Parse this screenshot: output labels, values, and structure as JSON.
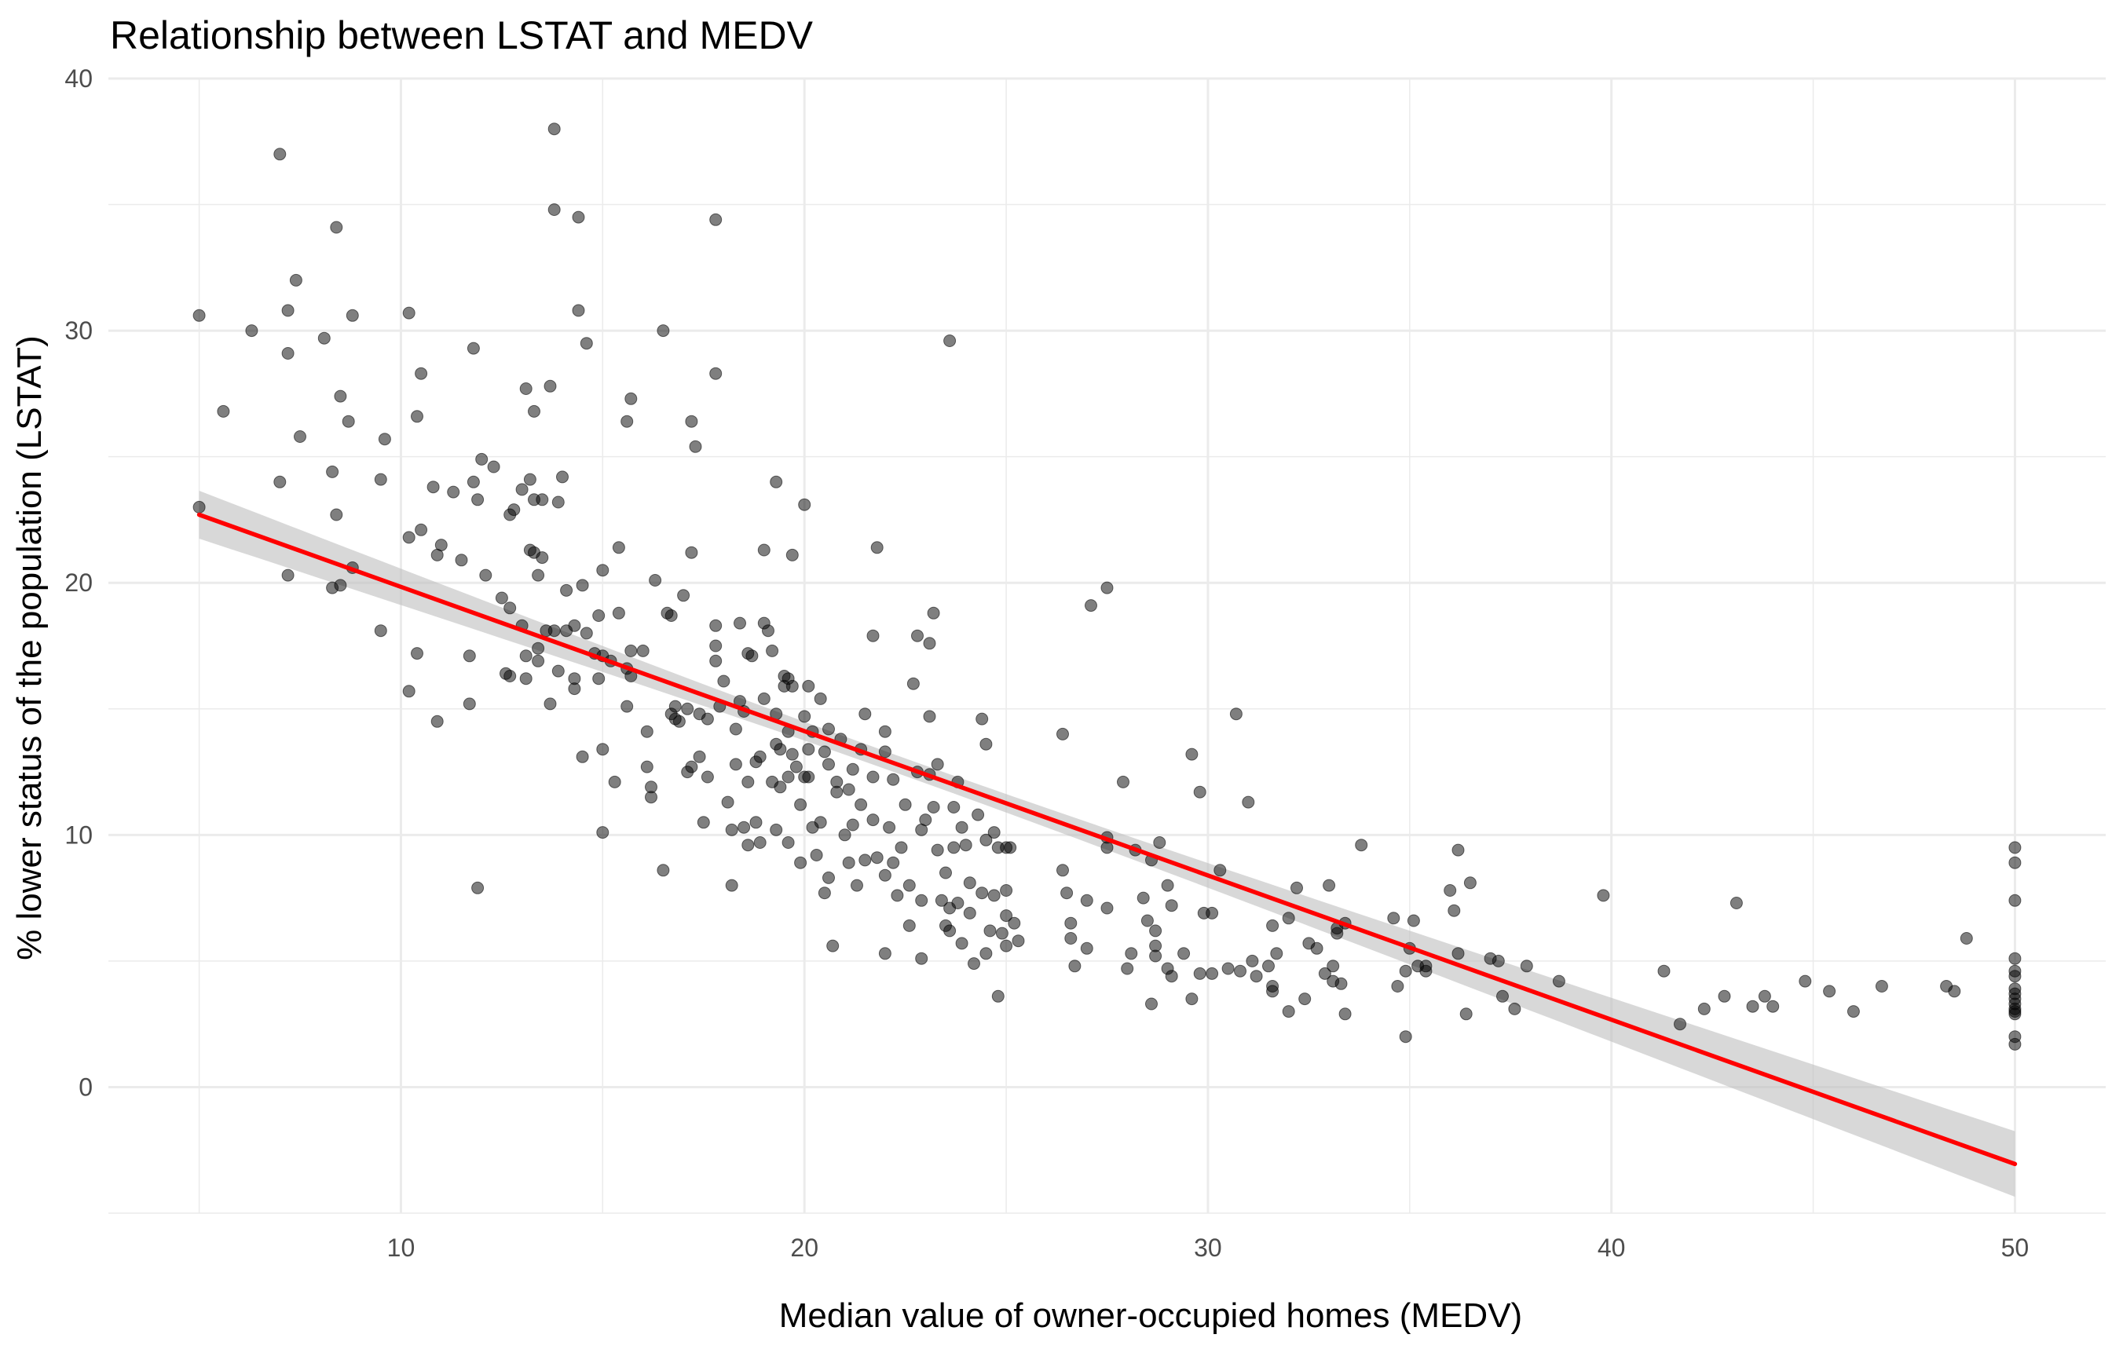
{
  "chart_data": {
    "type": "scatter",
    "title": "Relationship between LSTAT and MEDV",
    "xlabel": "Median value of owner-occupied homes (MEDV)",
    "ylabel": "% lower status of the population (LSTAT)",
    "xlim": [
      2.75,
      52.25
    ],
    "ylim": [
      -5,
      40
    ],
    "x_ticks": [
      10,
      20,
      30,
      40,
      50
    ],
    "y_ticks": [
      0,
      10,
      20,
      30,
      40
    ],
    "grid": true,
    "colors": {
      "points": "#000000",
      "fit_line": "#ff0000",
      "ribbon": "#bebebe",
      "grid": "#ebebeb"
    },
    "fit": {
      "x0": 5,
      "y0": 22.7,
      "x1": 50,
      "y1": -3.05,
      "se_ends": [
        0.95,
        1.3
      ],
      "se_center": 0.35,
      "x_center": 22.5
    },
    "points": [
      [
        5,
        30.6
      ],
      [
        5,
        23
      ],
      [
        5.6,
        26.8
      ],
      [
        6.3,
        30
      ],
      [
        7,
        37
      ],
      [
        7,
        24
      ],
      [
        7.2,
        29.1
      ],
      [
        7.2,
        30.8
      ],
      [
        7.2,
        20.3
      ],
      [
        7.4,
        32
      ],
      [
        7.5,
        25.8
      ],
      [
        8.1,
        29.7
      ],
      [
        8.3,
        24.4
      ],
      [
        8.3,
        19.8
      ],
      [
        8.4,
        34.1
      ],
      [
        8.4,
        22.7
      ],
      [
        8.5,
        27.4
      ],
      [
        8.5,
        19.9
      ],
      [
        8.7,
        26.4
      ],
      [
        8.8,
        30.6
      ],
      [
        8.8,
        20.6
      ],
      [
        9.5,
        18.1
      ],
      [
        9.6,
        25.7
      ],
      [
        9.5,
        24.1
      ],
      [
        10.2,
        30.7
      ],
      [
        10.2,
        21.8
      ],
      [
        10.2,
        15.7
      ],
      [
        10.4,
        26.6
      ],
      [
        10.4,
        17.2
      ],
      [
        10.5,
        28.3
      ],
      [
        10.5,
        22.1
      ],
      [
        10.8,
        23.8
      ],
      [
        10.9,
        21.1
      ],
      [
        10.9,
        14.5
      ],
      [
        11,
        21.5
      ],
      [
        11.3,
        23.6
      ],
      [
        11.5,
        20.9
      ],
      [
        11.7,
        17.1
      ],
      [
        11.7,
        15.2
      ],
      [
        11.8,
        29.3
      ],
      [
        11.8,
        24
      ],
      [
        11.9,
        7.9
      ],
      [
        11.9,
        23.3
      ],
      [
        12,
        24.9
      ],
      [
        12.1,
        20.3
      ],
      [
        12.3,
        24.6
      ],
      [
        12.5,
        19.4
      ],
      [
        12.6,
        16.4
      ],
      [
        12.7,
        22.7
      ],
      [
        12.7,
        19
      ],
      [
        12.7,
        16.3
      ],
      [
        12.8,
        22.9
      ],
      [
        13,
        23.7
      ],
      [
        13,
        18.3
      ],
      [
        13.1,
        27.7
      ],
      [
        13.1,
        17.1
      ],
      [
        13.1,
        16.2
      ],
      [
        13.2,
        24.1
      ],
      [
        13.2,
        21.3
      ],
      [
        13.3,
        23.3
      ],
      [
        13.3,
        21.2
      ],
      [
        13.3,
        26.8
      ],
      [
        13.4,
        20.3
      ],
      [
        13.4,
        17.4
      ],
      [
        13.4,
        16.9
      ],
      [
        13.5,
        23.3
      ],
      [
        13.5,
        21
      ],
      [
        13.6,
        18.1
      ],
      [
        13.7,
        27.8
      ],
      [
        13.7,
        15.2
      ],
      [
        13.8,
        34.8
      ],
      [
        13.8,
        38
      ],
      [
        13.8,
        18.1
      ],
      [
        13.9,
        23.2
      ],
      [
        13.9,
        16.5
      ],
      [
        14,
        24.2
      ],
      [
        14.1,
        18.1
      ],
      [
        14.1,
        19.7
      ],
      [
        14.3,
        18.3
      ],
      [
        14.3,
        15.8
      ],
      [
        14.3,
        16.2
      ],
      [
        14.4,
        34.5
      ],
      [
        14.4,
        30.8
      ],
      [
        14.5,
        19.9
      ],
      [
        14.5,
        13.1
      ],
      [
        14.6,
        29.5
      ],
      [
        14.6,
        18
      ],
      [
        14.8,
        17.2
      ],
      [
        14.9,
        18.7
      ],
      [
        14.9,
        16.2
      ],
      [
        15,
        20.5
      ],
      [
        15,
        17.1
      ],
      [
        15,
        13.4
      ],
      [
        15,
        10.1
      ],
      [
        15.2,
        16.9
      ],
      [
        15.3,
        12.1
      ],
      [
        15.4,
        18.8
      ],
      [
        15.4,
        21.4
      ],
      [
        15.6,
        26.4
      ],
      [
        15.6,
        16.6
      ],
      [
        15.6,
        15.1
      ],
      [
        15.7,
        27.3
      ],
      [
        15.7,
        16.3
      ],
      [
        15.7,
        17.3
      ],
      [
        16,
        17.3
      ],
      [
        16.1,
        12.7
      ],
      [
        16.1,
        14.1
      ],
      [
        16.2,
        11.9
      ],
      [
        16.2,
        11.5
      ],
      [
        16.3,
        20.1
      ],
      [
        16.5,
        30
      ],
      [
        16.5,
        8.6
      ],
      [
        16.6,
        18.8
      ],
      [
        16.7,
        18.7
      ],
      [
        16.7,
        14.8
      ],
      [
        16.8,
        15.1
      ],
      [
        16.8,
        14.6
      ],
      [
        16.9,
        14.5
      ],
      [
        17,
        19.5
      ],
      [
        17.1,
        15
      ],
      [
        17.1,
        12.5
      ],
      [
        17.2,
        26.4
      ],
      [
        17.2,
        21.2
      ],
      [
        17.2,
        12.7
      ],
      [
        17.3,
        25.4
      ],
      [
        17.4,
        13.1
      ],
      [
        17.4,
        14.8
      ],
      [
        17.5,
        10.5
      ],
      [
        17.6,
        14.6
      ],
      [
        17.6,
        12.3
      ],
      [
        17.8,
        34.4
      ],
      [
        17.8,
        28.3
      ],
      [
        17.8,
        18.3
      ],
      [
        17.8,
        17.5
      ],
      [
        17.8,
        16.9
      ],
      [
        17.9,
        15.1
      ],
      [
        18,
        16.1
      ],
      [
        18.1,
        11.3
      ],
      [
        18.2,
        10.2
      ],
      [
        18.2,
        8
      ],
      [
        18.3,
        14.2
      ],
      [
        18.3,
        12.8
      ],
      [
        18.4,
        18.4
      ],
      [
        18.4,
        15.3
      ],
      [
        18.5,
        14.9
      ],
      [
        18.5,
        10.3
      ],
      [
        18.6,
        9.6
      ],
      [
        18.6,
        12.1
      ],
      [
        18.6,
        17.2
      ],
      [
        18.7,
        17.1
      ],
      [
        18.8,
        12.9
      ],
      [
        18.8,
        10.5
      ],
      [
        18.9,
        13.1
      ],
      [
        18.9,
        9.7
      ],
      [
        19,
        18.4
      ],
      [
        19,
        21.3
      ],
      [
        19,
        15.4
      ],
      [
        19.1,
        18.1
      ],
      [
        19.2,
        17.3
      ],
      [
        19.2,
        12.1
      ],
      [
        19.3,
        24
      ],
      [
        19.3,
        14.8
      ],
      [
        19.3,
        13.6
      ],
      [
        19.3,
        10.2
      ],
      [
        19.4,
        13.4
      ],
      [
        19.4,
        11.9
      ],
      [
        19.5,
        16.3
      ],
      [
        19.5,
        15.9
      ],
      [
        19.6,
        16.2
      ],
      [
        19.6,
        14.1
      ],
      [
        19.6,
        12.3
      ],
      [
        19.6,
        9.7
      ],
      [
        19.7,
        21.1
      ],
      [
        19.7,
        15.9
      ],
      [
        19.7,
        13.2
      ],
      [
        19.8,
        12.7
      ],
      [
        19.9,
        11.2
      ],
      [
        19.9,
        8.9
      ],
      [
        20,
        23.1
      ],
      [
        20,
        14.7
      ],
      [
        20,
        12.3
      ],
      [
        20.1,
        13.4
      ],
      [
        20.1,
        12.3
      ],
      [
        20.1,
        15.9
      ],
      [
        20.2,
        10.3
      ],
      [
        20.2,
        14.1
      ],
      [
        20.3,
        9.2
      ],
      [
        20.4,
        10.5
      ],
      [
        20.4,
        15.4
      ],
      [
        20.5,
        13.3
      ],
      [
        20.5,
        7.7
      ],
      [
        20.6,
        8.3
      ],
      [
        20.6,
        12.8
      ],
      [
        20.6,
        14.2
      ],
      [
        20.7,
        5.6
      ],
      [
        20.8,
        11.7
      ],
      [
        20.8,
        12.1
      ],
      [
        20.9,
        13.8
      ],
      [
        21,
        10
      ],
      [
        21.1,
        8.9
      ],
      [
        21.1,
        11.8
      ],
      [
        21.2,
        12.6
      ],
      [
        21.2,
        10.4
      ],
      [
        21.3,
        8
      ],
      [
        21.4,
        13.4
      ],
      [
        21.4,
        11.2
      ],
      [
        21.5,
        14.8
      ],
      [
        21.5,
        9
      ],
      [
        21.7,
        17.9
      ],
      [
        21.7,
        12.3
      ],
      [
        21.7,
        10.6
      ],
      [
        21.8,
        21.4
      ],
      [
        21.8,
        9.1
      ],
      [
        22,
        14.1
      ],
      [
        22,
        13.3
      ],
      [
        22,
        8.4
      ],
      [
        22,
        5.3
      ],
      [
        22.1,
        10.3
      ],
      [
        22.2,
        12.2
      ],
      [
        22.2,
        8.9
      ],
      [
        22.3,
        7.6
      ],
      [
        22.4,
        9.5
      ],
      [
        22.5,
        11.2
      ],
      [
        22.6,
        8
      ],
      [
        22.6,
        6.4
      ],
      [
        22.7,
        16
      ],
      [
        22.8,
        17.9
      ],
      [
        22.8,
        12.5
      ],
      [
        22.9,
        10.2
      ],
      [
        22.9,
        7.4
      ],
      [
        22.9,
        5.1
      ],
      [
        23,
        10.6
      ],
      [
        23.1,
        12.4
      ],
      [
        23.1,
        14.7
      ],
      [
        23.1,
        17.6
      ],
      [
        23.2,
        18.8
      ],
      [
        23.2,
        11.1
      ],
      [
        23.3,
        12.8
      ],
      [
        23.3,
        9.4
      ],
      [
        23.4,
        7.4
      ],
      [
        23.5,
        6.4
      ],
      [
        23.5,
        8.5
      ],
      [
        23.6,
        29.6
      ],
      [
        23.6,
        7.1
      ],
      [
        23.6,
        6.2
      ],
      [
        23.7,
        11.1
      ],
      [
        23.7,
        9.5
      ],
      [
        23.8,
        12.1
      ],
      [
        23.8,
        7.3
      ],
      [
        23.9,
        10.3
      ],
      [
        23.9,
        5.7
      ],
      [
        24,
        9.6
      ],
      [
        24.1,
        8.1
      ],
      [
        24.1,
        6.9
      ],
      [
        24.2,
        4.9
      ],
      [
        24.3,
        10.8
      ],
      [
        24.4,
        14.6
      ],
      [
        24.4,
        7.7
      ],
      [
        24.5,
        13.6
      ],
      [
        24.5,
        9.8
      ],
      [
        24.5,
        5.3
      ],
      [
        24.6,
        6.2
      ],
      [
        24.7,
        10.1
      ],
      [
        24.7,
        7.6
      ],
      [
        24.8,
        3.6
      ],
      [
        24.8,
        9.5
      ],
      [
        24.9,
        6.1
      ],
      [
        25,
        9.5
      ],
      [
        25,
        7.8
      ],
      [
        25,
        6.8
      ],
      [
        25,
        5.6
      ],
      [
        25.1,
        9.5
      ],
      [
        25.2,
        6.5
      ],
      [
        25.3,
        5.8
      ],
      [
        26.4,
        14
      ],
      [
        26.4,
        8.6
      ],
      [
        26.5,
        7.7
      ],
      [
        26.6,
        6.5
      ],
      [
        26.6,
        5.9
      ],
      [
        26.7,
        4.8
      ],
      [
        27,
        7.4
      ],
      [
        27,
        5.5
      ],
      [
        27.1,
        19.1
      ],
      [
        27.5,
        19.8
      ],
      [
        27.5,
        9.9
      ],
      [
        27.5,
        9.5
      ],
      [
        27.5,
        7.1
      ],
      [
        27.9,
        12.1
      ],
      [
        28,
        4.7
      ],
      [
        28.1,
        5.3
      ],
      [
        28.2,
        9.4
      ],
      [
        28.4,
        7.5
      ],
      [
        28.5,
        6.6
      ],
      [
        28.6,
        3.3
      ],
      [
        28.6,
        9
      ],
      [
        28.7,
        6.2
      ],
      [
        28.7,
        5.6
      ],
      [
        28.7,
        5.2
      ],
      [
        28.8,
        9.7
      ],
      [
        29,
        8
      ],
      [
        29,
        4.7
      ],
      [
        29.1,
        4.4
      ],
      [
        29.1,
        7.2
      ],
      [
        29.4,
        5.3
      ],
      [
        29.6,
        13.2
      ],
      [
        29.6,
        3.5
      ],
      [
        29.8,
        11.7
      ],
      [
        29.8,
        4.5
      ],
      [
        29.9,
        6.9
      ],
      [
        30.1,
        4.5
      ],
      [
        30.1,
        6.9
      ],
      [
        30.3,
        8.6
      ],
      [
        30.5,
        4.7
      ],
      [
        30.7,
        14.8
      ],
      [
        30.8,
        4.6
      ],
      [
        31,
        11.3
      ],
      [
        31.1,
        5
      ],
      [
        31.2,
        4.4
      ],
      [
        31.5,
        4.8
      ],
      [
        31.6,
        6.4
      ],
      [
        31.6,
        3.8
      ],
      [
        31.6,
        4
      ],
      [
        31.7,
        5.3
      ],
      [
        32,
        3
      ],
      [
        32,
        6.7
      ],
      [
        32.2,
        7.9
      ],
      [
        32.4,
        3.5
      ],
      [
        32.5,
        5.7
      ],
      [
        32.7,
        5.5
      ],
      [
        32.9,
        4.5
      ],
      [
        33,
        8
      ],
      [
        33.1,
        4.8
      ],
      [
        33.1,
        4.2
      ],
      [
        33.2,
        6.3
      ],
      [
        33.2,
        6.1
      ],
      [
        33.3,
        4.1
      ],
      [
        33.4,
        2.9
      ],
      [
        33.4,
        6.5
      ],
      [
        33.8,
        9.6
      ],
      [
        34.6,
        6.7
      ],
      [
        34.7,
        4
      ],
      [
        34.9,
        4.6
      ],
      [
        34.9,
        2
      ],
      [
        35,
        5.5
      ],
      [
        35.1,
        6.6
      ],
      [
        35.2,
        4.8
      ],
      [
        35.4,
        4.6
      ],
      [
        35.4,
        4.8
      ],
      [
        36,
        7.8
      ],
      [
        36.1,
        7
      ],
      [
        36.2,
        9.4
      ],
      [
        36.2,
        5.3
      ],
      [
        36.4,
        2.9
      ],
      [
        36.5,
        8.1
      ],
      [
        37,
        5.1
      ],
      [
        37.2,
        5
      ],
      [
        37.3,
        3.6
      ],
      [
        37.6,
        3.1
      ],
      [
        37.9,
        4.8
      ],
      [
        38.7,
        4.2
      ],
      [
        39.8,
        7.6
      ],
      [
        41.3,
        4.6
      ],
      [
        41.7,
        2.5
      ],
      [
        42.3,
        3.1
      ],
      [
        42.8,
        3.6
      ],
      [
        43.1,
        7.3
      ],
      [
        43.5,
        3.2
      ],
      [
        43.8,
        3.6
      ],
      [
        44,
        3.2
      ],
      [
        44.8,
        4.2
      ],
      [
        45.4,
        3.8
      ],
      [
        46,
        3
      ],
      [
        46.7,
        4
      ],
      [
        48.3,
        4
      ],
      [
        48.5,
        3.8
      ],
      [
        48.8,
        5.9
      ],
      [
        50,
        9.5
      ],
      [
        50,
        8.9
      ],
      [
        50,
        7.4
      ],
      [
        50,
        5.1
      ],
      [
        50,
        4.6
      ],
      [
        50,
        4.4
      ],
      [
        50,
        3.9
      ],
      [
        50,
        3.7
      ],
      [
        50,
        3.5
      ],
      [
        50,
        3.3
      ],
      [
        50,
        3.1
      ],
      [
        50,
        3
      ],
      [
        50,
        2.9
      ],
      [
        50,
        2
      ],
      [
        50,
        1.7
      ]
    ]
  }
}
